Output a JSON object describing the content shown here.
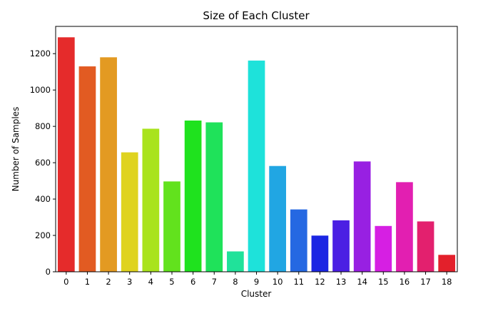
{
  "chart_data": {
    "type": "bar",
    "title": "Size of Each Cluster",
    "xlabel": "Cluster",
    "ylabel": "Number of Samples",
    "categories": [
      "0",
      "1",
      "2",
      "3",
      "4",
      "5",
      "6",
      "7",
      "8",
      "9",
      "10",
      "11",
      "12",
      "13",
      "14",
      "15",
      "16",
      "17",
      "18"
    ],
    "values": [
      1290,
      1130,
      1180,
      657,
      787,
      497,
      832,
      822,
      112,
      1162,
      582,
      343,
      199,
      283,
      607,
      252,
      493,
      277,
      93
    ],
    "colors": [
      "#e52b2b",
      "#e25b22",
      "#e39a22",
      "#dfd31f",
      "#a9e31d",
      "#62e21d",
      "#1fe21e",
      "#1fe25a",
      "#20e29a",
      "#1ee2da",
      "#21a6e3",
      "#2568e2",
      "#1b26e3",
      "#4b1fe3",
      "#9820e2",
      "#d61fe3",
      "#e21fb1",
      "#e3206e",
      "#e3202b"
    ],
    "yticks": [
      0,
      200,
      400,
      600,
      800,
      1000,
      1200
    ],
    "ylim": [
      0,
      1350
    ],
    "grid": false,
    "legend": "none"
  }
}
